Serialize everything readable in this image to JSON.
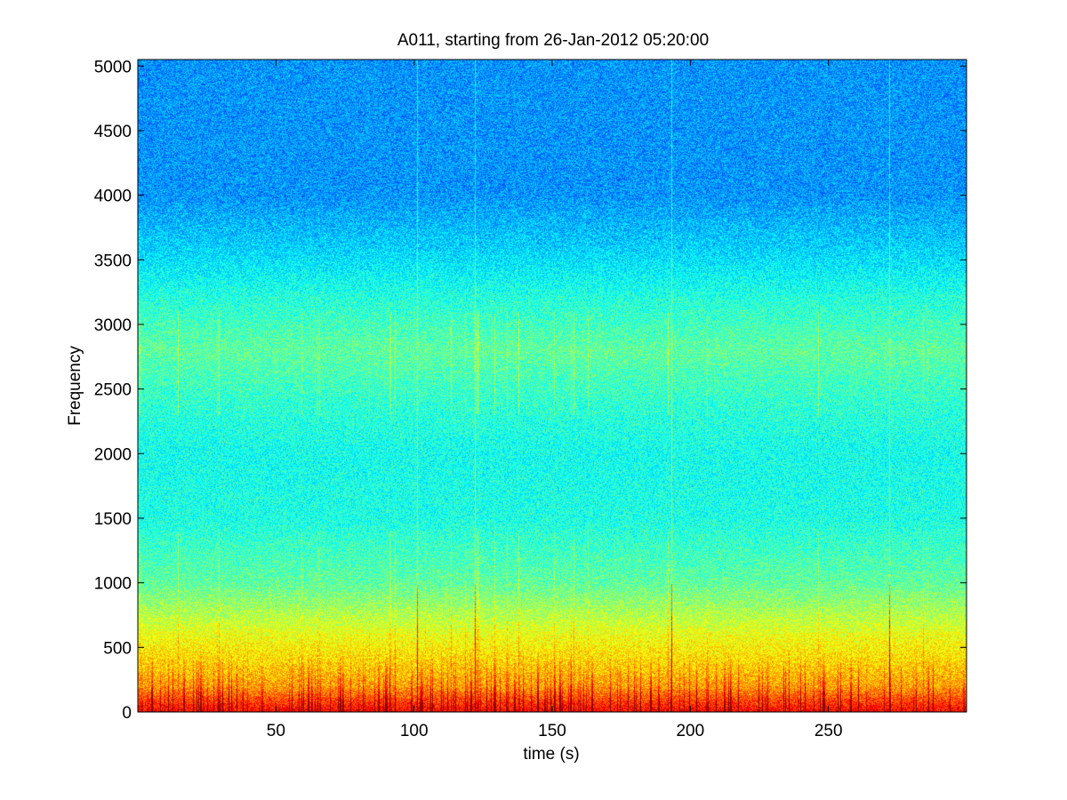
{
  "chart_data": {
    "type": "heatmap",
    "title": "A011, starting from 26-Jan-2012 05:20:00",
    "xlabel": "time (s)",
    "ylabel": "Frequency",
    "xlim": [
      0,
      300
    ],
    "ylim": [
      0,
      5050
    ],
    "xticks": [
      50,
      100,
      150,
      200,
      250
    ],
    "yticks": [
      0,
      500,
      1000,
      1500,
      2000,
      2500,
      3000,
      3500,
      4000,
      4500,
      5000
    ],
    "colormap": "jet",
    "grid": false,
    "legend": "none",
    "background_power_by_frequency": {
      "frequency": [
        0,
        100,
        200,
        400,
        600,
        700,
        1000,
        1500,
        2000,
        2400,
        2800,
        3200,
        3600,
        4000,
        5050
      ],
      "relative_level": [
        0.88,
        0.8,
        0.72,
        0.66,
        0.61,
        0.57,
        0.47,
        0.4,
        0.39,
        0.42,
        0.47,
        0.41,
        0.33,
        0.27,
        0.27
      ]
    },
    "broadband_events_time": [
      101,
      122,
      193,
      272
    ],
    "colors": {
      "low": "#00a0ff",
      "mid_low": "#1fe0d0",
      "mid": "#9cff5a",
      "high": "#ffe000",
      "peak": "#e00000"
    }
  }
}
